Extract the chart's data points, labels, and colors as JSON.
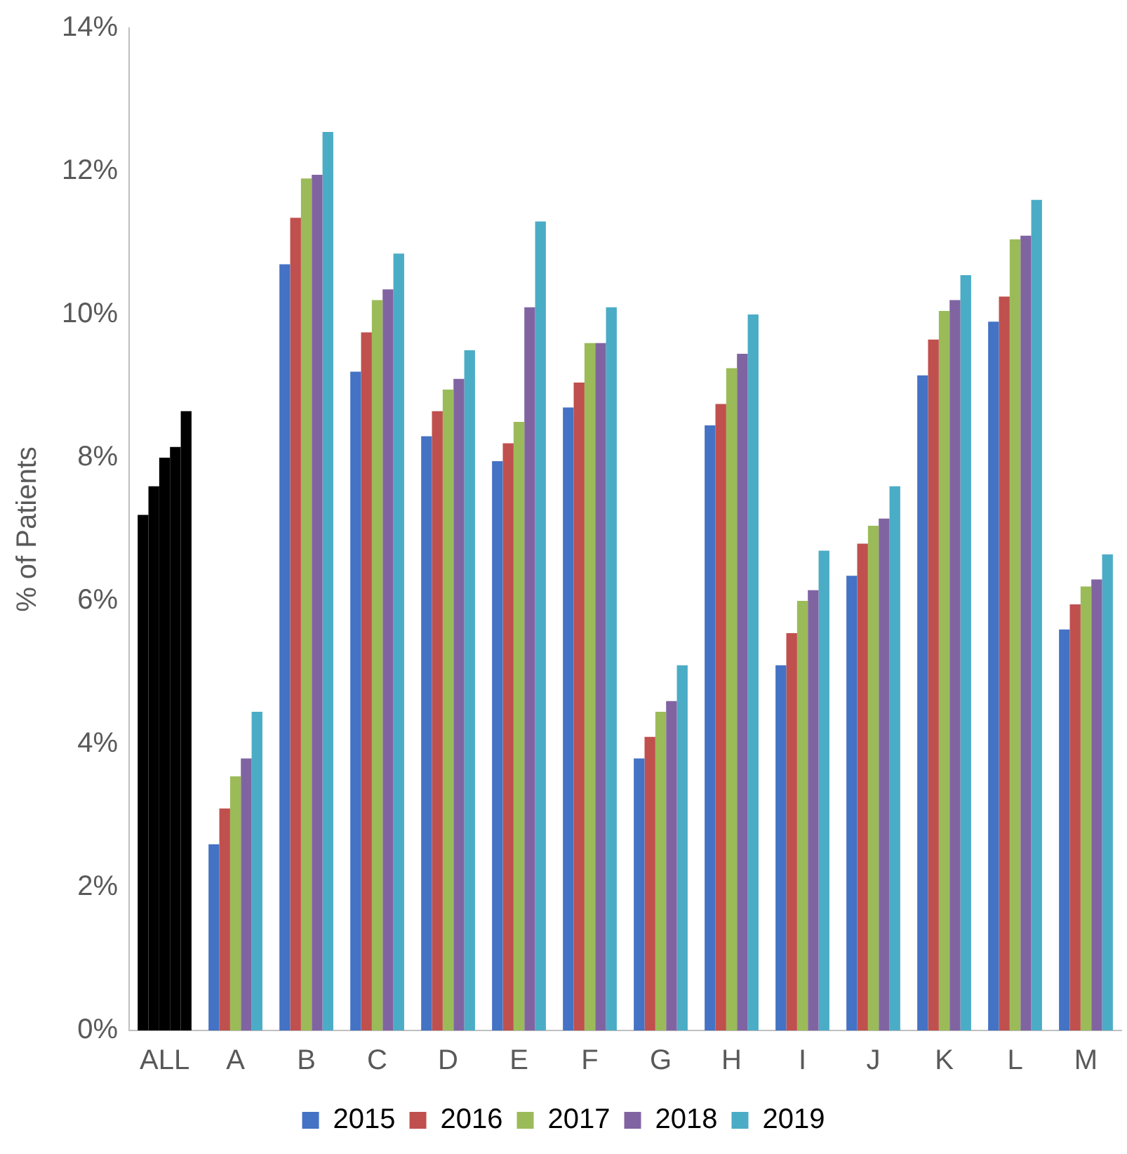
{
  "chart_data": {
    "type": "bar",
    "ylabel": "% of Patients",
    "categories": [
      "ALL",
      "A",
      "B",
      "C",
      "D",
      "E",
      "F",
      "G",
      "H",
      "I",
      "J",
      "K",
      "L",
      "M"
    ],
    "series": [
      {
        "name": "2015",
        "color": "#4472c4",
        "colors": [
          "#000000",
          "#4472c4",
          "#4472c4",
          "#4472c4",
          "#4472c4",
          "#4472c4",
          "#4472c4",
          "#4472c4",
          "#4472c4",
          "#4472c4",
          "#4472c4",
          "#4472c4",
          "#4472c4",
          "#4472c4"
        ],
        "values": [
          7.2,
          2.6,
          10.7,
          9.2,
          8.3,
          7.95,
          8.7,
          3.8,
          8.45,
          5.1,
          6.35,
          9.15,
          9.9,
          5.6
        ]
      },
      {
        "name": "2016",
        "color": "#c0504d",
        "colors": [
          "#000000",
          "#c0504d",
          "#c0504d",
          "#c0504d",
          "#c0504d",
          "#c0504d",
          "#c0504d",
          "#c0504d",
          "#c0504d",
          "#c0504d",
          "#c0504d",
          "#c0504d",
          "#c0504d",
          "#c0504d"
        ],
        "values": [
          7.6,
          3.1,
          11.35,
          9.75,
          8.65,
          8.2,
          9.05,
          4.1,
          8.75,
          5.55,
          6.8,
          9.65,
          10.25,
          5.95
        ]
      },
      {
        "name": "2017",
        "color": "#9bbb59",
        "colors": [
          "#000000",
          "#9bbb59",
          "#9bbb59",
          "#9bbb59",
          "#9bbb59",
          "#9bbb59",
          "#9bbb59",
          "#9bbb59",
          "#9bbb59",
          "#9bbb59",
          "#9bbb59",
          "#9bbb59",
          "#9bbb59",
          "#9bbb59"
        ],
        "values": [
          8.0,
          3.55,
          11.9,
          10.2,
          8.95,
          8.5,
          9.6,
          4.45,
          9.25,
          6.0,
          7.05,
          10.05,
          11.05,
          6.2
        ]
      },
      {
        "name": "2018",
        "color": "#8064a2",
        "colors": [
          "#000000",
          "#8064a2",
          "#8064a2",
          "#8064a2",
          "#8064a2",
          "#8064a2",
          "#8064a2",
          "#8064a2",
          "#8064a2",
          "#8064a2",
          "#8064a2",
          "#8064a2",
          "#8064a2",
          "#8064a2"
        ],
        "values": [
          8.15,
          3.8,
          11.95,
          10.35,
          9.1,
          10.1,
          9.6,
          4.6,
          9.45,
          6.15,
          7.15,
          10.2,
          11.1,
          6.3
        ]
      },
      {
        "name": "2019",
        "color": "#4bacc6",
        "colors": [
          "#000000",
          "#4bacc6",
          "#4bacc6",
          "#4bacc6",
          "#4bacc6",
          "#4bacc6",
          "#4bacc6",
          "#4bacc6",
          "#4bacc6",
          "#4bacc6",
          "#4bacc6",
          "#4bacc6",
          "#4bacc6",
          "#4bacc6"
        ],
        "values": [
          8.65,
          4.45,
          12.55,
          10.85,
          9.5,
          11.3,
          10.1,
          5.1,
          10.0,
          6.7,
          7.6,
          10.55,
          11.6,
          6.65
        ]
      }
    ],
    "ylim": [
      0,
      14
    ],
    "yticks": [
      {
        "value": 0,
        "label": "0%"
      },
      {
        "value": 2,
        "label": "2%"
      },
      {
        "value": 4,
        "label": "4%"
      },
      {
        "value": 6,
        "label": "6%"
      },
      {
        "value": 8,
        "label": "8%"
      },
      {
        "value": 10,
        "label": "10%"
      },
      {
        "value": 12,
        "label": "12%"
      },
      {
        "value": 14,
        "label": "14%"
      }
    ],
    "grid": false,
    "legend": "bottom"
  }
}
